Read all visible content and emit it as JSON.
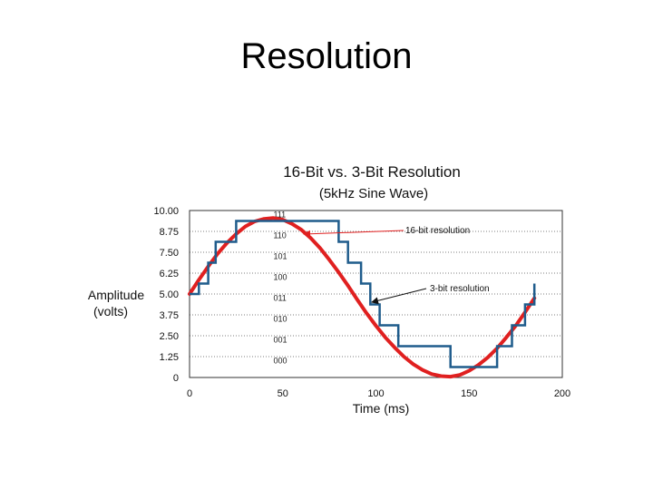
{
  "slide": {
    "title": "Resolution"
  },
  "chart_data": {
    "type": "line",
    "title": "16-Bit vs. 3-Bit Resolution",
    "subtitle": "(5kHz Sine Wave)",
    "xlabel": "Time (ms)",
    "ylabel_line1": "Amplitude",
    "ylabel_line2": "(volts)",
    "xlim": [
      0,
      200
    ],
    "ylim": [
      0,
      10
    ],
    "x_ticks": [
      "0",
      "50",
      "100",
      "150",
      "200"
    ],
    "y_ticks": [
      "0",
      "1.25",
      "2.50",
      "3.75",
      "5.00",
      "6.25",
      "7.50",
      "8.75",
      "10.00"
    ],
    "grid": "horizontal dotted",
    "colors": {
      "sine": "#e02020",
      "steps": "#1f5c8c",
      "annotation_16": "#e02020",
      "annotation_3": "#111111"
    },
    "level_codes": [
      {
        "value": 0.625,
        "code": "000"
      },
      {
        "value": 1.875,
        "code": "001"
      },
      {
        "value": 3.125,
        "code": "010"
      },
      {
        "value": 4.375,
        "code": "011"
      },
      {
        "value": 5.625,
        "code": "100"
      },
      {
        "value": 6.875,
        "code": "101"
      },
      {
        "value": 8.125,
        "code": "110"
      },
      {
        "value": 9.375,
        "code": "111"
      }
    ],
    "series": [
      {
        "name": "16-bit resolution",
        "x": [
          0,
          5,
          10,
          15,
          20,
          25,
          30,
          35,
          40,
          45,
          50,
          55,
          60,
          65,
          70,
          75,
          80,
          85,
          90,
          95,
          100,
          105,
          110,
          115,
          120,
          125,
          130,
          135,
          140,
          145,
          150,
          155,
          160,
          165,
          170,
          175,
          180,
          185
        ],
        "y": [
          5.0,
          5.85,
          6.65,
          7.4,
          8.05,
          8.6,
          9.05,
          9.35,
          9.5,
          9.55,
          9.45,
          9.2,
          8.85,
          8.35,
          7.75,
          7.05,
          6.3,
          5.5,
          4.65,
          3.85,
          3.1,
          2.4,
          1.8,
          1.25,
          0.8,
          0.45,
          0.2,
          0.08,
          0.05,
          0.15,
          0.4,
          0.75,
          1.2,
          1.75,
          2.4,
          3.1,
          3.9,
          4.75
        ]
      },
      {
        "name": "3-bit resolution",
        "x": [
          0,
          5,
          10,
          14,
          25,
          47,
          80,
          85,
          92,
          97,
          102,
          112,
          140,
          165,
          173,
          180,
          185
        ],
        "y": [
          5.0,
          5.625,
          6.875,
          8.125,
          9.375,
          9.375,
          8.125,
          6.875,
          5.625,
          4.375,
          3.125,
          1.875,
          0.625,
          1.875,
          3.125,
          4.375,
          5.625
        ]
      }
    ],
    "annotations": [
      {
        "text": "16-bit resolution",
        "target_series": 0
      },
      {
        "text": "3-bit resolution",
        "target_series": 1
      }
    ]
  }
}
